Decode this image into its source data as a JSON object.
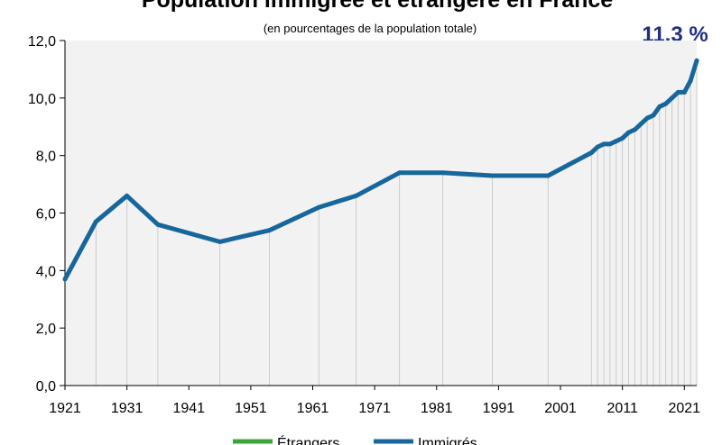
{
  "chart_data": {
    "type": "line",
    "title": "Population immigrée et étrangère en France",
    "subtitle": "(en pourcentages de la population totale)",
    "annotation": "11,3 %",
    "xlabel": "",
    "ylabel": "",
    "xlim": [
      1921,
      2023
    ],
    "ylim": [
      0,
      12
    ],
    "x_ticks": [
      "1921",
      "1931",
      "1941",
      "1951",
      "1961",
      "1971",
      "1981",
      "1991",
      "2001",
      "2011",
      "2021"
    ],
    "y_ticks": [
      "0,0",
      "2,0",
      "4,0",
      "6,0",
      "8,0",
      "10,0",
      "12,0"
    ],
    "grid": "vertical lines at observation years",
    "legend_position": "bottom",
    "colors": {
      "immigres": "#17669c",
      "etrangers": "#3aa63a",
      "grid": "#cccccc",
      "callout": "#1f2d86"
    },
    "series": [
      {
        "name": "Immigrés",
        "x": [
          1921,
          1926,
          1931,
          1936,
          1946,
          1954,
          1962,
          1968,
          1975,
          1982,
          1990,
          1999,
          2006,
          2007,
          2008,
          2009,
          2010,
          2011,
          2012,
          2013,
          2014,
          2015,
          2016,
          2017,
          2018,
          2019,
          2020,
          2021,
          2022,
          2023
        ],
        "y": [
          3.7,
          5.7,
          6.6,
          5.6,
          5.0,
          5.4,
          6.2,
          6.6,
          7.4,
          7.4,
          7.3,
          7.3,
          8.1,
          8.3,
          8.4,
          8.4,
          8.5,
          8.6,
          8.8,
          8.9,
          9.1,
          9.3,
          9.4,
          9.7,
          9.8,
          10.0,
          10.2,
          10.2,
          10.6,
          11.3
        ]
      }
    ],
    "legend": [
      "Étrangers",
      "Immigrés"
    ]
  }
}
